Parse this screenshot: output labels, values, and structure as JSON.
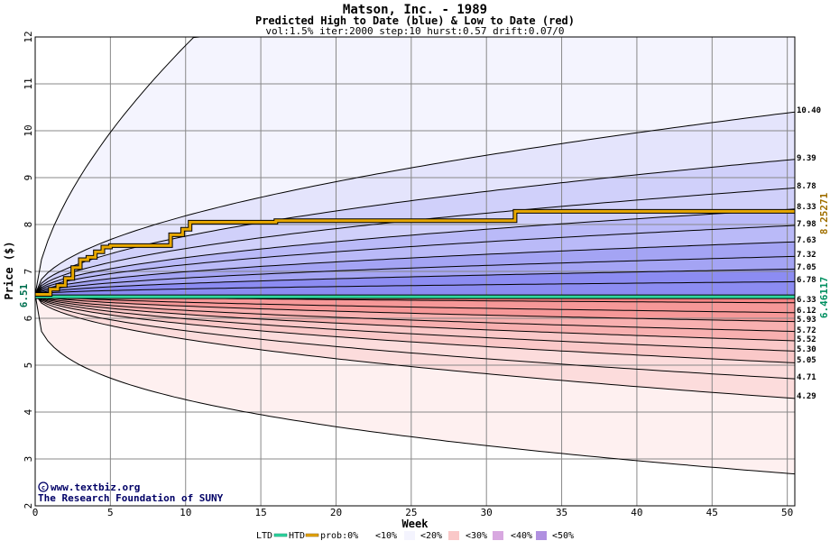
{
  "chart_data": {
    "type": "area",
    "title": "Matson, Inc. - 1989",
    "subtitle": "Predicted High to Date (blue) &  Low to Date (red)",
    "params": "vol:1.5% iter:2000 step:10 hurst:0.57 drift:0.07/0",
    "xlabel": "Week",
    "ylabel": "Price ($)",
    "xlim": [
      0,
      50.5
    ],
    "ylim": [
      2,
      12
    ],
    "x_ticks": [
      0,
      5,
      10,
      15,
      20,
      25,
      30,
      35,
      40,
      45,
      50
    ],
    "y_ticks": [
      2,
      3,
      4,
      5,
      6,
      7,
      8,
      9,
      10,
      11,
      12
    ],
    "start_price": 6.51,
    "start_label": "6.51",
    "htd_label": "8.25271",
    "ltd_label": "6.46117",
    "htd_color": "#a07000",
    "ltd_color": "#009060",
    "high_curve_ends": [
      12.0,
      10.4,
      9.39,
      8.78,
      8.33,
      7.98,
      7.63,
      7.32,
      7.05,
      6.78
    ],
    "low_curve_ends": [
      6.33,
      6.12,
      5.93,
      5.72,
      5.52,
      5.3,
      5.05,
      4.71,
      4.29,
      2.68
    ],
    "end_labels_high": [
      "10.40",
      "9.39",
      "8.78",
      "8.33",
      "7.98",
      "7.63",
      "7.32",
      "7.05",
      "6.78"
    ],
    "end_labels_low": [
      "6.33",
      "6.12",
      "5.93",
      "5.72",
      "5.52",
      "5.30",
      "5.05",
      "4.71",
      "4.29"
    ],
    "htd_path": [
      [
        0,
        6.51
      ],
      [
        1,
        6.62
      ],
      [
        1.5,
        6.7
      ],
      [
        2,
        6.85
      ],
      [
        2.5,
        7.08
      ],
      [
        3,
        7.25
      ],
      [
        3.5,
        7.3
      ],
      [
        4,
        7.42
      ],
      [
        4.5,
        7.52
      ],
      [
        5,
        7.55
      ],
      [
        8.5,
        7.55
      ],
      [
        9,
        7.78
      ],
      [
        9.8,
        7.9
      ],
      [
        10.3,
        8.05
      ],
      [
        15,
        8.05
      ],
      [
        16,
        8.08
      ],
      [
        31.7,
        8.08
      ],
      [
        31.9,
        8.28
      ],
      [
        50.5,
        8.28
      ]
    ],
    "ltd_value": 6.46,
    "credit_line1": "www.textbiz.org",
    "credit_line2": "The Research Foundation of SUNY",
    "legend": {
      "ltd": "LTD",
      "htd": "HTD",
      "prob": "prob:0%",
      "items": [
        "<10%",
        "<20%",
        "<30%",
        "<40%",
        "<50%"
      ]
    },
    "colors": {
      "blue_bands": [
        "#f4f4fe",
        "#e4e4fc",
        "#d0d0fa",
        "#babaf8",
        "#a4a4f4",
        "#8c8cf2"
      ],
      "red_bands": [
        "#fef0f0",
        "#fcdcdc",
        "#fac8c8",
        "#f8b0b0",
        "#f69898",
        "#f48484"
      ],
      "htd_line": "#e8a800",
      "ltd_line": "#30d8a0",
      "grid": "#888888"
    }
  }
}
